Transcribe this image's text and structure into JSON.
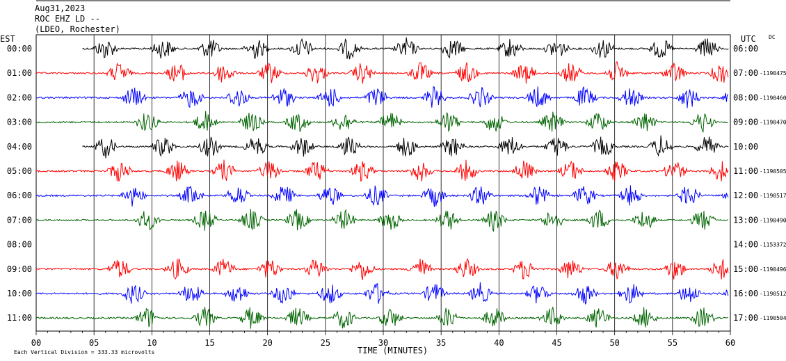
{
  "header": {
    "date": "Aug31,2023",
    "station": "ROC EHZ LD --",
    "network": "(LDEO, Rochester)"
  },
  "chart_data": {
    "type": "line",
    "title": "",
    "left_axis_label": "EST",
    "right_axis_label": "UTC",
    "right_axis_note": "DC",
    "xlabel": "TIME (MINUTES)",
    "x_ticks": [
      "00",
      "05",
      "10",
      "15",
      "20",
      "25",
      "30",
      "35",
      "40",
      "45",
      "50",
      "55",
      "60"
    ],
    "xlim": [
      0,
      60
    ],
    "footer_note": "Each Vertical Division = 333.33 microvolts",
    "trace_colors": [
      "#000000",
      "#ff0000",
      "#0000ff",
      "#006400"
    ],
    "rows": [
      {
        "est": "00:00",
        "utc": "06:00",
        "dc": "",
        "color": "#000000",
        "start_min": 4
      },
      {
        "est": "01:00",
        "utc": "07:00",
        "dc": "1190475",
        "color": "#ff0000",
        "start_min": 0
      },
      {
        "est": "02:00",
        "utc": "08:00",
        "dc": "1190460",
        "color": "#0000ff",
        "start_min": 0
      },
      {
        "est": "03:00",
        "utc": "09:00",
        "dc": "1190470",
        "color": "#006400",
        "start_min": 0
      },
      {
        "est": "04:00",
        "utc": "10:00",
        "dc": "",
        "color": "#000000",
        "start_min": 4
      },
      {
        "est": "05:00",
        "utc": "11:00",
        "dc": "1190505",
        "color": "#ff0000",
        "start_min": 0
      },
      {
        "est": "06:00",
        "utc": "12:00",
        "dc": "1190517",
        "color": "#0000ff",
        "start_min": 0
      },
      {
        "est": "07:00",
        "utc": "13:00",
        "dc": "1190490",
        "color": "#006400",
        "start_min": 0
      },
      {
        "est": "08:00",
        "utc": "14:00",
        "dc": "1153372",
        "color": "#000000",
        "start_min": null
      },
      {
        "est": "09:00",
        "utc": "15:00",
        "dc": "1190496",
        "color": "#ff0000",
        "start_min": 0
      },
      {
        "est": "10:00",
        "utc": "16:00",
        "dc": "1190512",
        "color": "#0000ff",
        "start_min": 0
      },
      {
        "est": "11:00",
        "utc": "17:00",
        "dc": "1190504",
        "color": "#006400",
        "start_min": 0
      }
    ]
  }
}
